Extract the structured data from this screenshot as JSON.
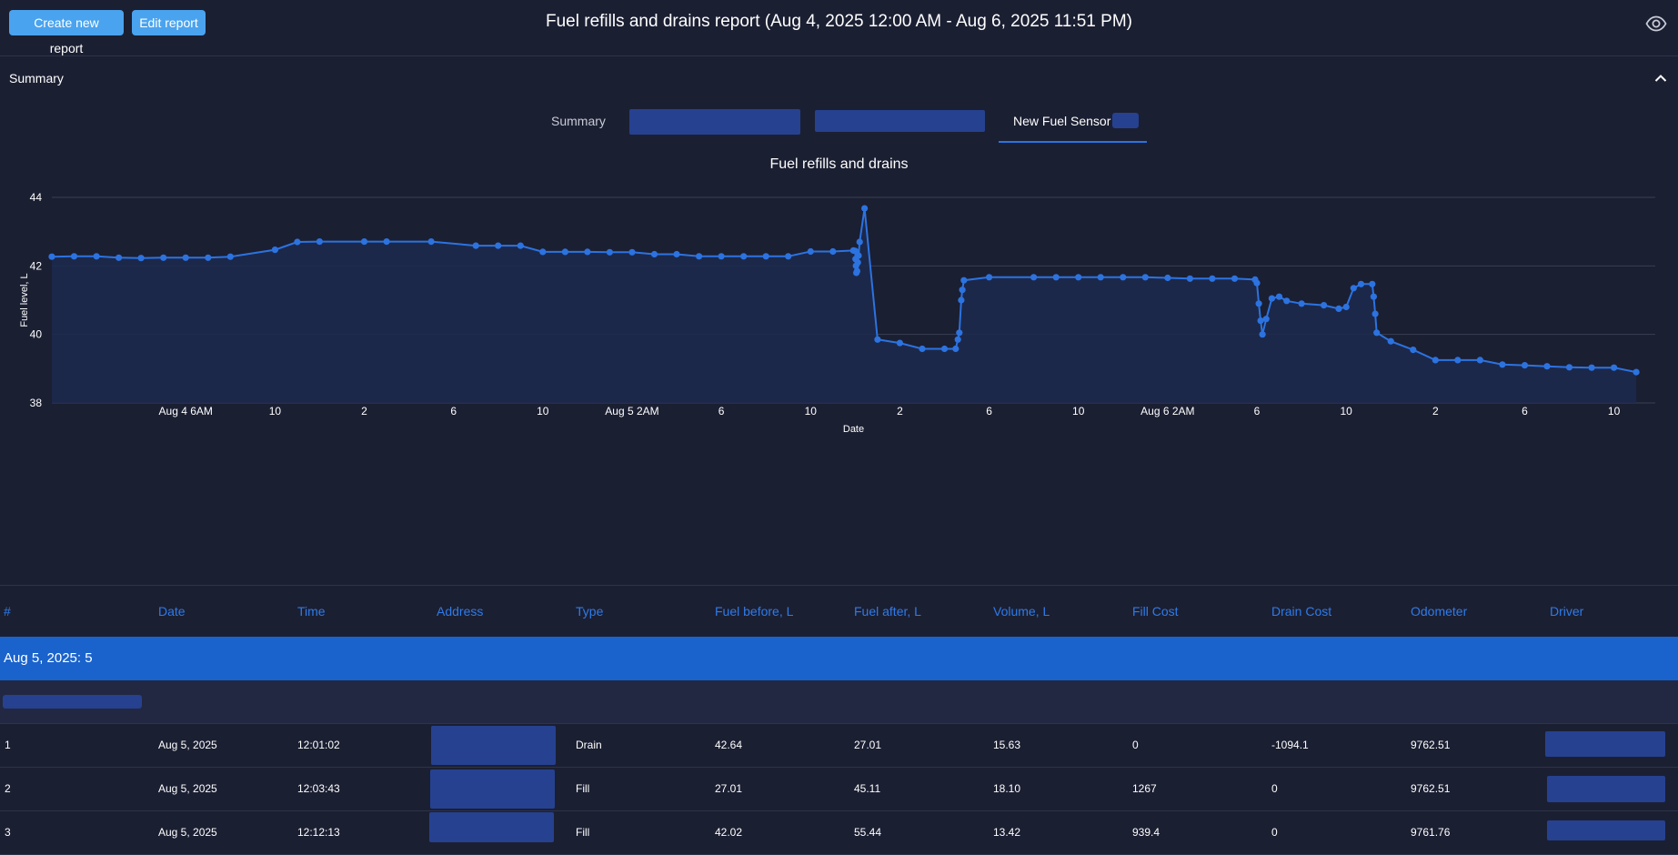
{
  "toolbar": {
    "create_label": "Create new report",
    "edit_label": "Edit report",
    "title": "Fuel refills and drains report (Aug 4, 2025 12:00 AM - Aug 6, 2025 11:51 PM)",
    "eye_icon": "eye-icon"
  },
  "summary": {
    "label": "Summary",
    "toggle_icon": "chevron-up-icon"
  },
  "tabs": [
    {
      "label": "Summary"
    },
    {
      "label": ""
    },
    {
      "label": ""
    },
    {
      "label": "New Fuel Sensor",
      "active": true
    }
  ],
  "chart_data": {
    "type": "line",
    "title": "Fuel refills and drains",
    "xlabel": "Date",
    "ylabel": "Fuel level, L",
    "ylim": [
      38,
      44
    ],
    "yticks": [
      38,
      40,
      42,
      44
    ],
    "xlim": [
      "2025-08-04T00:00",
      "2025-08-06T23:51"
    ],
    "xticks": [
      {
        "label": "Aug 4 6AM",
        "t": "2025-08-04T06:00"
      },
      {
        "label": "10",
        "t": "2025-08-04T10:00"
      },
      {
        "label": "2",
        "t": "2025-08-04T14:00"
      },
      {
        "label": "6",
        "t": "2025-08-04T18:00"
      },
      {
        "label": "10",
        "t": "2025-08-04T22:00"
      },
      {
        "label": "Aug 5 2AM",
        "t": "2025-08-05T02:00"
      },
      {
        "label": "6",
        "t": "2025-08-05T06:00"
      },
      {
        "label": "10",
        "t": "2025-08-05T10:00"
      },
      {
        "label": "2",
        "t": "2025-08-05T14:00"
      },
      {
        "label": "6",
        "t": "2025-08-05T18:00"
      },
      {
        "label": "10",
        "t": "2025-08-05T22:00"
      },
      {
        "label": "Aug 6 2AM",
        "t": "2025-08-06T02:00"
      },
      {
        "label": "6",
        "t": "2025-08-06T06:00"
      },
      {
        "label": "10",
        "t": "2025-08-06T10:00"
      },
      {
        "label": "2",
        "t": "2025-08-06T14:00"
      },
      {
        "label": "6",
        "t": "2025-08-06T18:00"
      },
      {
        "label": "10",
        "t": "2025-08-06T22:00"
      }
    ],
    "grid": true,
    "colors": {
      "line": "#2c73e0",
      "area": "#1c2a4f",
      "grid": "#3a3f52"
    },
    "series": [
      {
        "points": [
          [
            "2025-08-04T00:00",
            42.27
          ],
          [
            "2025-08-04T01:00",
            42.28
          ],
          [
            "2025-08-04T02:00",
            42.28
          ],
          [
            "2025-08-04T03:00",
            42.24
          ],
          [
            "2025-08-04T04:00",
            42.23
          ],
          [
            "2025-08-04T05:00",
            42.24
          ],
          [
            "2025-08-04T06:00",
            42.24
          ],
          [
            "2025-08-04T07:00",
            42.24
          ],
          [
            "2025-08-04T08:00",
            42.27
          ],
          [
            "2025-08-04T10:00",
            42.47
          ],
          [
            "2025-08-04T11:00",
            42.7
          ],
          [
            "2025-08-04T12:00",
            42.71
          ],
          [
            "2025-08-04T14:00",
            42.71
          ],
          [
            "2025-08-04T15:00",
            42.71
          ],
          [
            "2025-08-04T17:00",
            42.71
          ],
          [
            "2025-08-04T19:00",
            42.59
          ],
          [
            "2025-08-04T20:00",
            42.59
          ],
          [
            "2025-08-04T21:00",
            42.59
          ],
          [
            "2025-08-04T22:00",
            42.41
          ],
          [
            "2025-08-04T23:00",
            42.41
          ],
          [
            "2025-08-05T00:00",
            42.41
          ],
          [
            "2025-08-05T01:00",
            42.4
          ],
          [
            "2025-08-05T02:00",
            42.4
          ],
          [
            "2025-08-05T03:00",
            42.34
          ],
          [
            "2025-08-05T04:00",
            42.34
          ],
          [
            "2025-08-05T05:00",
            42.28
          ],
          [
            "2025-08-05T06:00",
            42.28
          ],
          [
            "2025-08-05T07:00",
            42.28
          ],
          [
            "2025-08-05T08:00",
            42.28
          ],
          [
            "2025-08-05T09:00",
            42.28
          ],
          [
            "2025-08-05T10:00",
            42.42
          ],
          [
            "2025-08-05T11:00",
            42.42
          ],
          [
            "2025-08-05T11:55",
            42.45
          ],
          [
            "2025-08-05T12:00",
            42.44
          ],
          [
            "2025-08-05T12:01",
            42.2
          ],
          [
            "2025-08-05T12:02",
            42.0
          ],
          [
            "2025-08-05T12:03",
            41.8
          ],
          [
            "2025-08-05T12:05",
            41.85
          ],
          [
            "2025-08-05T12:07",
            42.1
          ],
          [
            "2025-08-05T12:09",
            42.3
          ],
          [
            "2025-08-05T12:12",
            42.7
          ],
          [
            "2025-08-05T12:25",
            43.68
          ],
          [
            "2025-08-05T13:00",
            39.85
          ],
          [
            "2025-08-05T14:00",
            39.75
          ],
          [
            "2025-08-05T15:00",
            39.58
          ],
          [
            "2025-08-05T16:00",
            39.58
          ],
          [
            "2025-08-05T16:30",
            39.58
          ],
          [
            "2025-08-05T16:36",
            39.85
          ],
          [
            "2025-08-05T16:40",
            40.05
          ],
          [
            "2025-08-05T16:45",
            41.0
          ],
          [
            "2025-08-05T16:48",
            41.3
          ],
          [
            "2025-08-05T16:52",
            41.58
          ],
          [
            "2025-08-05T18:00",
            41.67
          ],
          [
            "2025-08-05T20:00",
            41.67
          ],
          [
            "2025-08-05T21:00",
            41.67
          ],
          [
            "2025-08-05T22:00",
            41.67
          ],
          [
            "2025-08-05T23:00",
            41.67
          ],
          [
            "2025-08-06T00:00",
            41.67
          ],
          [
            "2025-08-06T01:00",
            41.67
          ],
          [
            "2025-08-06T02:00",
            41.65
          ],
          [
            "2025-08-06T03:00",
            41.63
          ],
          [
            "2025-08-06T04:00",
            41.63
          ],
          [
            "2025-08-06T05:00",
            41.63
          ],
          [
            "2025-08-06T05:55",
            41.6
          ],
          [
            "2025-08-06T06:00",
            41.5
          ],
          [
            "2025-08-06T06:05",
            40.9
          ],
          [
            "2025-08-06T06:10",
            40.4
          ],
          [
            "2025-08-06T06:15",
            40.0
          ],
          [
            "2025-08-06T06:25",
            40.45
          ],
          [
            "2025-08-06T06:40",
            41.05
          ],
          [
            "2025-08-06T07:00",
            41.1
          ],
          [
            "2025-08-06T07:20",
            40.98
          ],
          [
            "2025-08-06T08:00",
            40.9
          ],
          [
            "2025-08-06T09:00",
            40.85
          ],
          [
            "2025-08-06T09:40",
            40.75
          ],
          [
            "2025-08-06T10:00",
            40.8
          ],
          [
            "2025-08-06T10:20",
            41.35
          ],
          [
            "2025-08-06T10:40",
            41.47
          ],
          [
            "2025-08-06T11:10",
            41.47
          ],
          [
            "2025-08-06T11:14",
            41.1
          ],
          [
            "2025-08-06T11:18",
            40.6
          ],
          [
            "2025-08-06T11:22",
            40.05
          ],
          [
            "2025-08-06T12:00",
            39.8
          ],
          [
            "2025-08-06T13:00",
            39.55
          ],
          [
            "2025-08-06T14:00",
            39.25
          ],
          [
            "2025-08-06T15:00",
            39.25
          ],
          [
            "2025-08-06T16:00",
            39.25
          ],
          [
            "2025-08-06T17:00",
            39.12
          ],
          [
            "2025-08-06T18:00",
            39.1
          ],
          [
            "2025-08-06T19:00",
            39.07
          ],
          [
            "2025-08-06T20:00",
            39.04
          ],
          [
            "2025-08-06T21:00",
            39.03
          ],
          [
            "2025-08-06T22:00",
            39.03
          ],
          [
            "2025-08-06T23:00",
            38.9
          ]
        ]
      }
    ]
  },
  "table": {
    "columns": [
      "#",
      "Date",
      "Time",
      "Address",
      "Type",
      "Fuel before, L",
      "Fuel after, L",
      "Volume, L",
      "Fill Cost",
      "Drain Cost",
      "Odometer",
      "Driver"
    ],
    "group": {
      "label": "Aug 5, 2025: 5"
    },
    "rows": [
      {
        "num": "1",
        "date": "Aug 5, 2025",
        "time": "12:01:02",
        "type": "Drain",
        "fuel_before": "42.64",
        "fuel_after": "27.01",
        "volume": "15.63",
        "fill_cost": "0",
        "drain_cost": "-1094.1",
        "odometer": "9762.51"
      },
      {
        "num": "2",
        "date": "Aug 5, 2025",
        "time": "12:03:43",
        "type": "Fill",
        "fuel_before": "27.01",
        "fuel_after": "45.11",
        "volume": "18.10",
        "fill_cost": "1267",
        "drain_cost": "0",
        "odometer": "9762.51"
      },
      {
        "num": "3",
        "date": "Aug 5, 2025",
        "time": "12:12:13",
        "type": "Fill",
        "fuel_before": "42.02",
        "fuel_after": "55.44",
        "volume": "13.42",
        "fill_cost": "939.4",
        "drain_cost": "0",
        "odometer": "9761.76"
      }
    ]
  }
}
